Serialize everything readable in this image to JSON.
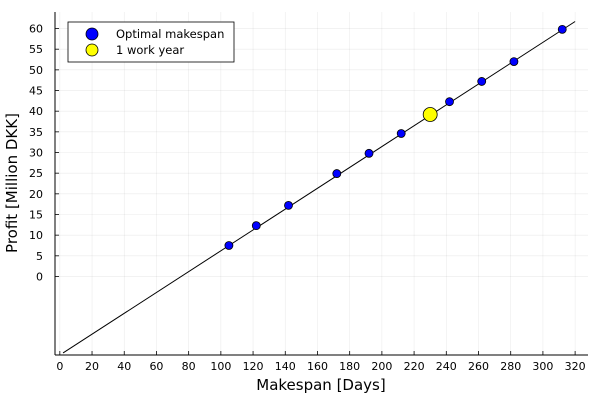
{
  "chart_data": {
    "type": "scatter",
    "xlabel": "Makespan [Days]",
    "ylabel": "Profit [Million DKK]",
    "xlim": [
      -3,
      328
    ],
    "ylim": [
      -19,
      64
    ],
    "xticks": [
      0,
      20,
      40,
      60,
      80,
      100,
      120,
      140,
      160,
      180,
      200,
      220,
      240,
      260,
      280,
      300,
      320
    ],
    "yticks": [
      0,
      5,
      10,
      15,
      20,
      25,
      30,
      35,
      40,
      45,
      50,
      55,
      60
    ],
    "grid": true,
    "legend_position": "top-left",
    "fit_line": {
      "x": [
        2,
        320
      ],
      "y": [
        -18.5,
        61.7
      ]
    },
    "series": [
      {
        "name": "Optimal makespan",
        "marker": "circle",
        "color": "#0000ff",
        "points": [
          {
            "x": 105,
            "y": 7.5
          },
          {
            "x": 122,
            "y": 12.3
          },
          {
            "x": 142,
            "y": 17.2
          },
          {
            "x": 172,
            "y": 24.9
          },
          {
            "x": 192,
            "y": 29.8
          },
          {
            "x": 212,
            "y": 34.6
          },
          {
            "x": 242,
            "y": 42.3
          },
          {
            "x": 262,
            "y": 47.2
          },
          {
            "x": 282,
            "y": 52.0
          },
          {
            "x": 312,
            "y": 59.8
          }
        ]
      },
      {
        "name": "1 work year",
        "marker": "circle",
        "color": "#ffff00",
        "points": [
          {
            "x": 230,
            "y": 39.2
          }
        ]
      }
    ]
  }
}
